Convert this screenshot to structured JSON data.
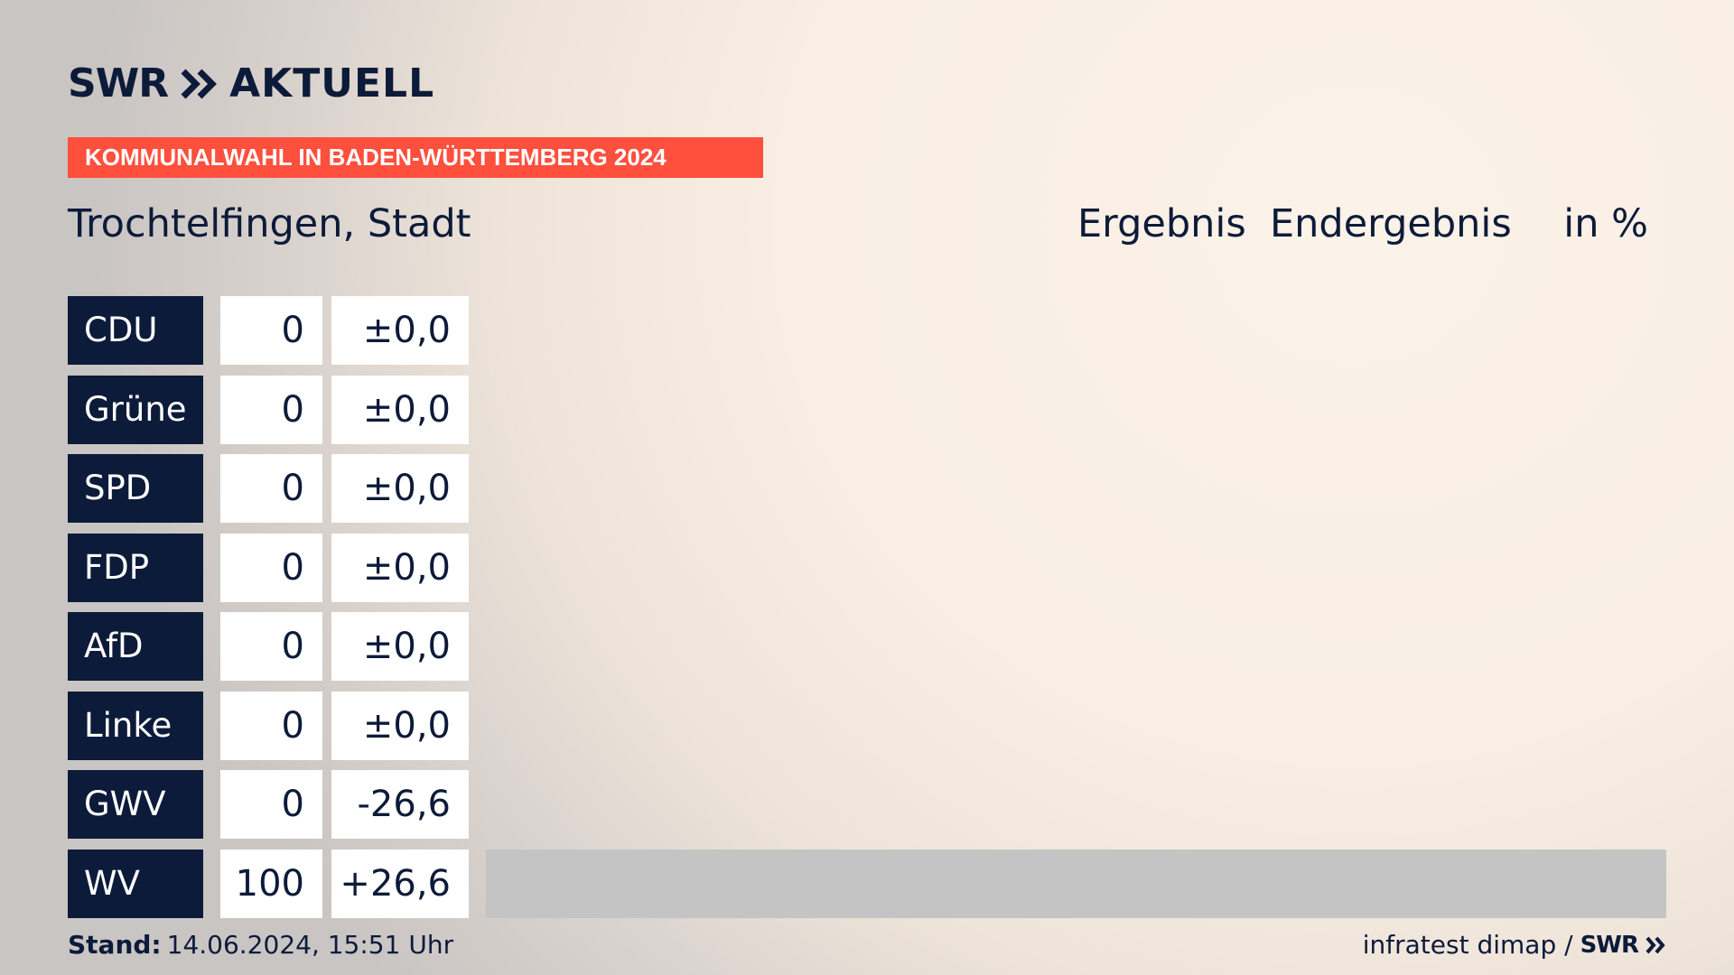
{
  "brand": {
    "swr": "SWR",
    "chevrons_icon": "double-chevron-right-icon",
    "aktuell": "AKTUELL"
  },
  "banner": {
    "text": "KOMMUNALWAHL IN BADEN-WÜRTTEMBERG 2024",
    "color": "#ff4f3d"
  },
  "place": {
    "title": "Trochtelfingen, Stadt"
  },
  "header": {
    "result_label": "Ergebnis",
    "status_label": "Endergebnis",
    "unit_label": "in %"
  },
  "colors": {
    "party_box": "#0d1b3a",
    "bar": "#c4c4c4",
    "text": "#0d1b3a"
  },
  "chart_data": {
    "type": "bar",
    "orientation": "horizontal",
    "unit": "%",
    "xlim": [
      0,
      100
    ],
    "categories": [
      "CDU",
      "Grüne",
      "SPD",
      "FDP",
      "AfD",
      "Linke",
      "GWV",
      "WV"
    ],
    "values": [
      0,
      0,
      0,
      0,
      0,
      0,
      0,
      100
    ],
    "values_display": [
      "0",
      "0",
      "0",
      "0",
      "0",
      "0",
      "0",
      "100"
    ],
    "differences": [
      0.0,
      0.0,
      0.0,
      0.0,
      0.0,
      0.0,
      -26.6,
      26.6
    ],
    "differences_display": [
      "±0,0",
      "±0,0",
      "±0,0",
      "±0,0",
      "±0,0",
      "±0,0",
      "-26,6",
      "+26,6"
    ]
  },
  "footer": {
    "stand_label": "Stand:",
    "stand_value": "14.06.2024, 15:51 Uhr",
    "source": "infratest dimap /",
    "source_brand": "SWR",
    "source_icon": "double-chevron-right-icon"
  }
}
